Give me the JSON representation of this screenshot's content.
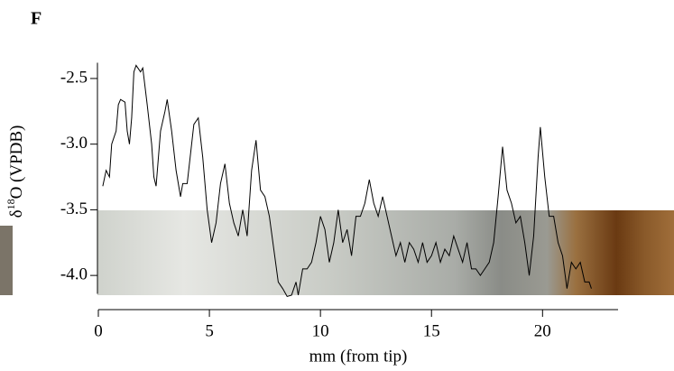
{
  "chart_data": {
    "type": "line",
    "panel_label": "F",
    "x_label": "mm (from tip)",
    "y_label": [
      "δ",
      "18",
      "O (VPDB)"
    ],
    "color": "#000000",
    "xlim": [
      0,
      23.4
    ],
    "xticks": [
      0,
      5,
      10,
      15,
      20
    ],
    "ylim": [
      -4.14,
      -2.38
    ],
    "yticks": [
      -2.5,
      {
        "value": -3,
        "label": "-3.0"
      },
      -3.5,
      {
        "value": -4,
        "label": "-4.0"
      }
    ],
    "x": [
      0.2,
      0.35,
      0.5,
      0.6,
      0.8,
      0.9,
      1.0,
      1.2,
      1.3,
      1.4,
      1.5,
      1.6,
      1.7,
      1.9,
      2.0,
      2.2,
      2.4,
      2.5,
      2.6,
      2.8,
      3.0,
      3.1,
      3.3,
      3.5,
      3.7,
      3.8,
      4.0,
      4.2,
      4.3,
      4.5,
      4.7,
      4.9,
      5.1,
      5.3,
      5.5,
      5.7,
      5.9,
      6.1,
      6.3,
      6.5,
      6.7,
      6.9,
      7.1,
      7.3,
      7.5,
      7.7,
      7.9,
      8.1,
      8.3,
      8.5,
      8.7,
      8.9,
      9.0,
      9.2,
      9.4,
      9.6,
      9.8,
      10.0,
      10.2,
      10.4,
      10.6,
      10.8,
      11.0,
      11.2,
      11.4,
      11.6,
      11.8,
      12.0,
      12.2,
      12.4,
      12.6,
      12.8,
      13.0,
      13.2,
      13.4,
      13.6,
      13.8,
      14.0,
      14.2,
      14.4,
      14.6,
      14.8,
      15.0,
      15.2,
      15.4,
      15.6,
      15.8,
      16.0,
      16.2,
      16.4,
      16.6,
      16.8,
      17.0,
      17.2,
      17.4,
      17.6,
      17.8,
      18.0,
      18.2,
      18.4,
      18.6,
      18.8,
      19.0,
      19.2,
      19.4,
      19.6,
      19.8,
      19.9,
      20.1,
      20.3,
      20.5,
      20.7,
      20.9,
      21.1,
      21.3,
      21.5,
      21.7,
      21.9,
      22.1,
      22.2
    ],
    "values": [
      -3.32,
      -3.2,
      -3.25,
      -3.0,
      -2.9,
      -2.7,
      -2.66,
      -2.68,
      -2.9,
      -3.0,
      -2.8,
      -2.45,
      -2.4,
      -2.45,
      -2.42,
      -2.7,
      -3.0,
      -3.25,
      -3.32,
      -2.9,
      -2.75,
      -2.66,
      -2.9,
      -3.2,
      -3.4,
      -3.3,
      -3.3,
      -3.0,
      -2.85,
      -2.8,
      -3.1,
      -3.5,
      -3.75,
      -3.6,
      -3.3,
      -3.15,
      -3.45,
      -3.6,
      -3.7,
      -3.5,
      -3.7,
      -3.2,
      -2.97,
      -3.35,
      -3.4,
      -3.55,
      -3.8,
      -4.05,
      -4.1,
      -4.16,
      -4.15,
      -4.05,
      -4.15,
      -3.95,
      -3.95,
      -3.9,
      -3.75,
      -3.55,
      -3.65,
      -3.9,
      -3.75,
      -3.5,
      -3.75,
      -3.65,
      -3.85,
      -3.55,
      -3.55,
      -3.45,
      -3.27,
      -3.45,
      -3.55,
      -3.4,
      -3.55,
      -3.7,
      -3.85,
      -3.75,
      -3.9,
      -3.75,
      -3.8,
      -3.9,
      -3.75,
      -3.9,
      -3.85,
      -3.75,
      -3.9,
      -3.8,
      -3.85,
      -3.7,
      -3.8,
      -3.9,
      -3.75,
      -3.95,
      -3.95,
      -4.0,
      -3.95,
      -3.9,
      -3.75,
      -3.4,
      -3.02,
      -3.35,
      -3.45,
      -3.6,
      -3.55,
      -3.75,
      -4.0,
      -3.7,
      -3.1,
      -2.87,
      -3.25,
      -3.55,
      -3.55,
      -3.75,
      -3.85,
      -4.1,
      -3.9,
      -3.95,
      -3.9,
      -4.05,
      -4.05,
      -4.1
    ]
  }
}
